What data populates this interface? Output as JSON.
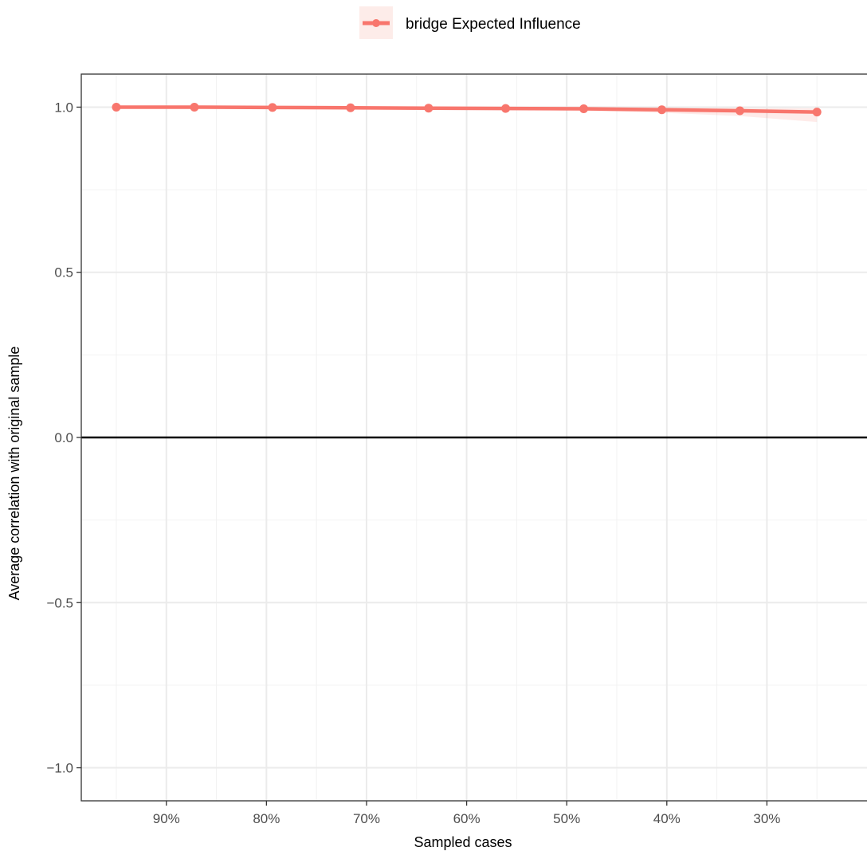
{
  "chart_data": {
    "type": "line",
    "title": "",
    "xlabel": "Sampled cases",
    "ylabel": "Average correlation with original sample",
    "x_reversed": true,
    "x_tick_values": [
      90,
      80,
      70,
      60,
      50,
      40,
      30
    ],
    "x_tick_labels": [
      "90%",
      "80%",
      "70%",
      "60%",
      "50%",
      "40%",
      "30%"
    ],
    "y_tick_values": [
      1.0,
      0.5,
      0.0,
      -0.5,
      -1.0
    ],
    "y_tick_labels": [
      "1.0",
      "0.5",
      "0.0",
      "−0.5",
      "−1.0"
    ],
    "xlim": [
      98.5,
      20
    ],
    "ylim": [
      -1.1,
      1.1
    ],
    "reference_line_y": 0,
    "grid": true,
    "legend_position": "top",
    "series": [
      {
        "name": "bridge Expected Influence",
        "color": "#F8766D",
        "x": [
          95,
          87.2,
          79.4,
          71.6,
          63.8,
          56.1,
          48.3,
          40.5,
          32.7,
          25
        ],
        "y": [
          1.0,
          1.0,
          0.999,
          0.998,
          0.997,
          0.996,
          0.995,
          0.992,
          0.989,
          0.985
        ],
        "band_lower": [
          1.0,
          0.999,
          0.998,
          0.996,
          0.994,
          0.992,
          0.989,
          0.983,
          0.973,
          0.955
        ],
        "band_upper": [
          1.0,
          1.0,
          1.0,
          1.0,
          1.0,
          1.0,
          1.0,
          0.999,
          0.998,
          0.996
        ]
      }
    ]
  }
}
